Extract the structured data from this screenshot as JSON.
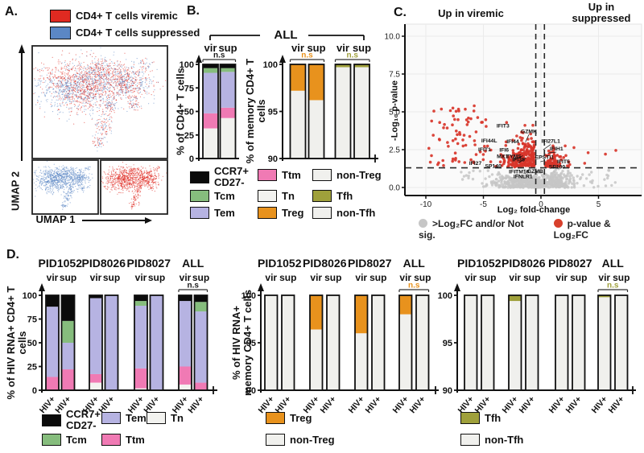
{
  "panels": {
    "A": {
      "label": "A."
    },
    "B": {
      "label": "B."
    },
    "C": {
      "label": "C."
    },
    "D": {
      "label": "D."
    }
  },
  "panelA": {
    "legend": [
      {
        "label": "CD4+ T cells viremic",
        "color": "#e02a21"
      },
      {
        "label": "CD4+ T cells suppressed",
        "color": "#5b87c5"
      }
    ],
    "xlabel": "UMAP 1",
    "ylabel": "UMAP 2"
  },
  "panelB": {
    "bracket_label": "ALL"
  },
  "palette": {
    "CCR7+ CD27-": "#0b0b0b",
    "Tcm": "#86bd7d",
    "Tem": "#b6b3e2",
    "Ttm": "#f07ab4",
    "Tn": "#f2f2ef",
    "Treg": "#e8921d",
    "non-Treg": "#f0f0ed",
    "Tfh": "#9fa03b",
    "non-Tfh": "#f0f0ed"
  },
  "legend_labels": {
    "CCR7+ CD27-": [
      "CCR7+",
      "CD27-"
    ],
    "Tcm": [
      "Tcm"
    ],
    "Tem": [
      "Tem"
    ],
    "Ttm": [
      "Ttm"
    ],
    "Tn": [
      "Tn"
    ],
    "Treg": [
      "Treg"
    ],
    "non-Treg": [
      "non-Treg"
    ],
    "Tfh": [
      "Tfh"
    ],
    "non-Tfh": [
      "non-Tfh"
    ]
  },
  "chart_data": [
    {
      "id": "B1",
      "type": "bar",
      "ylabel": "% of CD4+ T cells",
      "ylim": [
        0,
        100
      ],
      "yticks": [
        0,
        25,
        50,
        75,
        100
      ],
      "stack_order": [
        "Tn",
        "Ttm",
        "Tem",
        "Tcm",
        "CCR7+ CD27-"
      ],
      "groups": [
        {
          "name": "",
          "sig": "n.s",
          "sig_color": "#1a1a1a",
          "bars": [
            {
              "cond": "vir",
              "values": {
                "Tn": 32,
                "Ttm": 16,
                "Tem": 43,
                "Tcm": 5,
                "CCR7+ CD27-": 4
              }
            },
            {
              "cond": "sup",
              "values": {
                "Tn": 43,
                "Ttm": 11,
                "Tem": 38,
                "Tcm": 4,
                "CCR7+ CD27-": 4
              }
            }
          ]
        }
      ]
    },
    {
      "id": "B2",
      "type": "bar",
      "ylabel": "% of memory CD4+ T cells",
      "ylim": [
        90,
        100
      ],
      "yticks": [
        90,
        95,
        100
      ],
      "stack_order": [
        "non-Treg",
        "Treg"
      ],
      "groups": [
        {
          "name": "",
          "sig": "n.s",
          "sig_color": "#e8921d",
          "bars": [
            {
              "cond": "vir",
              "values": {
                "non-Treg": 97.2,
                "Treg": 2.8
              }
            },
            {
              "cond": "sup",
              "values": {
                "non-Treg": 96.2,
                "Treg": 3.8
              }
            }
          ]
        }
      ]
    },
    {
      "id": "B3",
      "type": "bar",
      "ylabel": "",
      "ylim": [
        90,
        100
      ],
      "yticks": [],
      "stack_order": [
        "non-Tfh",
        "Tfh"
      ],
      "groups": [
        {
          "name": "",
          "sig": "n.s",
          "sig_color": "#9fa03b",
          "bars": [
            {
              "cond": "vir",
              "values": {
                "non-Tfh": 99.7,
                "Tfh": 0.3
              }
            },
            {
              "cond": "sup",
              "values": {
                "non-Tfh": 99.7,
                "Tfh": 0.3
              }
            }
          ]
        }
      ]
    },
    {
      "id": "C",
      "type": "scatter",
      "title_left": "Up in viremic",
      "title_right": "Up in suppressed",
      "xlabel": "Log₂ fold-change",
      "ylabel": "-Log₁₀ p-value",
      "xticks": [
        -10,
        -5,
        0,
        5
      ],
      "xtick_labels": [
        "-10",
        "-5",
        "0",
        "5"
      ],
      "yticks": [
        0,
        2.5,
        5,
        7.5,
        10
      ],
      "ytick_labels": [
        "0.0",
        "2.5",
        "5.0",
        "7.5",
        "10.0"
      ],
      "xlim": [
        -11.8,
        8.7
      ],
      "ylim": [
        -0.5,
        10.8
      ],
      "thresholds": {
        "p_line": 1.3,
        "fc_lines": [
          -0.45,
          0.3
        ]
      },
      "point_colors": {
        "nonsig": "#c6c6c6",
        "sig": "#d8352a"
      },
      "legend": [
        {
          "label": ">Log₂FC and/or Not sig.",
          "color": "#c6c6c6"
        },
        {
          "label": "p-value & Log₂FC",
          "color": "#d8402c"
        }
      ],
      "genes": [
        {
          "name": "IFIT3",
          "x": -3.3,
          "y": 3.95
        },
        {
          "name": "GZMK",
          "x": -1.05,
          "y": 3.6,
          "px": -1.35,
          "py": 3.0
        },
        {
          "name": "IFI44L",
          "x": -4.5,
          "y": 2.98
        },
        {
          "name": "IFI44",
          "x": -2.45,
          "y": 2.92
        },
        {
          "name": "IFIT1",
          "x": -4.9,
          "y": 2.4
        },
        {
          "name": "IFI6",
          "x": -3.2,
          "y": 2.38
        },
        {
          "name": "IFI27L1",
          "x": 0.85,
          "y": 2.95,
          "px": 0.2,
          "py": 2.5
        },
        {
          "name": "IFIH1",
          "x": 1.35,
          "y": 2.45,
          "px": 0.6,
          "py": 2.28
        },
        {
          "name": "MX1",
          "x": -3.35,
          "y": 1.93
        },
        {
          "name": "TYMS",
          "x": -2.35,
          "y": 1.95,
          "px": -1.55,
          "py": 2.1
        },
        {
          "name": "IFI35",
          "x": -1.95,
          "y": 1.72,
          "px": -1.3,
          "py": 1.95
        },
        {
          "name": "EPSTI1",
          "x": 0.3,
          "y": 1.88,
          "px": -0.05,
          "py": 1.7
        },
        {
          "name": "IFIT5",
          "x": 1.95,
          "y": 1.6
        },
        {
          "name": "IFI27",
          "x": -5.7,
          "y": 1.5
        },
        {
          "name": "SP140",
          "x": -4.15,
          "y": 1.3
        },
        {
          "name": "SP100",
          "x": 1.4,
          "y": 1.25
        },
        {
          "name": "GZMB",
          "x": -0.5,
          "y": 0.95
        },
        {
          "name": "IFITM10",
          "x": -1.9,
          "y": 0.93
        },
        {
          "name": "IFNLR1",
          "x": -1.55,
          "y": 0.62
        }
      ]
    },
    {
      "id": "D1",
      "type": "bar",
      "ylabel": "% of HIV RNA+ CD4+ T cells",
      "ylim": [
        0,
        100
      ],
      "yticks": [
        0,
        25,
        50,
        75,
        100
      ],
      "xtick_label": "HIV+",
      "stack_order": [
        "Tn",
        "Ttm",
        "Tem",
        "Tcm",
        "CCR7+ CD27-"
      ],
      "groups": [
        {
          "name": "PID1052",
          "bars": [
            {
              "cond": "vir",
              "values": {
                "Tn": 0,
                "Ttm": 14,
                "Tem": 74,
                "Tcm": 0,
                "CCR7+ CD27-": 12
              }
            },
            {
              "cond": "sup",
              "values": {
                "Tn": 0,
                "Ttm": 22,
                "Tem": 28,
                "Tcm": 23,
                "CCR7+ CD27-": 27
              }
            }
          ]
        },
        {
          "name": "PID8026",
          "bars": [
            {
              "cond": "vir",
              "values": {
                "Tn": 8,
                "Ttm": 9,
                "Tem": 80,
                "Tcm": 0,
                "CCR7+ CD27-": 3
              }
            },
            {
              "cond": "sup",
              "values": {
                "Tn": 0,
                "Ttm": 0,
                "Tem": 100,
                "Tcm": 0,
                "CCR7+ CD27-": 0
              }
            }
          ]
        },
        {
          "name": "PID8027",
          "bars": [
            {
              "cond": "vir",
              "values": {
                "Tn": 2,
                "Ttm": 21,
                "Tem": 66,
                "Tcm": 5,
                "CCR7+ CD27-": 6
              }
            },
            {
              "cond": "sup",
              "values": {
                "Tn": 0,
                "Ttm": 0,
                "Tem": 100,
                "Tcm": 0,
                "CCR7+ CD27-": 0
              }
            }
          ]
        },
        {
          "name": "ALL",
          "sig": "n.s",
          "sig_color": "#1a1a1a",
          "bars": [
            {
              "cond": "vir",
              "values": {
                "Tn": 6,
                "Ttm": 19,
                "Tem": 69,
                "Tcm": 0,
                "CCR7+ CD27-": 6
              }
            },
            {
              "cond": "sup",
              "values": {
                "Tn": 0,
                "Ttm": 8,
                "Tem": 75,
                "Tcm": 10,
                "CCR7+ CD27-": 7
              }
            }
          ]
        }
      ]
    },
    {
      "id": "D2",
      "type": "bar",
      "ylabel": "% of HIV RNA+ memory CD4+ T cells",
      "ylim": [
        90,
        100
      ],
      "yticks": [
        90,
        95,
        100
      ],
      "xtick_label": "HIV+",
      "stack_order": [
        "non-Treg",
        "Treg"
      ],
      "groups": [
        {
          "name": "PID1052",
          "bars": [
            {
              "cond": "vir",
              "values": {
                "non-Treg": 100,
                "Treg": 0
              }
            },
            {
              "cond": "sup",
              "values": {
                "non-Treg": 100,
                "Treg": 0
              }
            }
          ]
        },
        {
          "name": "PID8026",
          "bars": [
            {
              "cond": "vir",
              "values": {
                "non-Treg": 96.4,
                "Treg": 3.6
              }
            },
            {
              "cond": "sup",
              "values": {
                "non-Treg": 100,
                "Treg": 0
              }
            }
          ]
        },
        {
          "name": "PID8027",
          "bars": [
            {
              "cond": "vir",
              "values": {
                "non-Treg": 96.0,
                "Treg": 4.0
              }
            },
            {
              "cond": "sup",
              "values": {
                "non-Treg": 100,
                "Treg": 0
              }
            }
          ]
        },
        {
          "name": "ALL",
          "sig": "n.s",
          "sig_color": "#e8921d",
          "bars": [
            {
              "cond": "vir",
              "values": {
                "non-Treg": 98.0,
                "Treg": 2.0
              }
            },
            {
              "cond": "sup",
              "values": {
                "non-Treg": 100,
                "Treg": 0
              }
            }
          ]
        }
      ]
    },
    {
      "id": "D3",
      "type": "bar",
      "ylabel": "",
      "ylim": [
        90,
        100
      ],
      "yticks": [
        90,
        95,
        100
      ],
      "xtick_label": "HIV+",
      "stack_order": [
        "non-Tfh",
        "Tfh"
      ],
      "groups": [
        {
          "name": "PID1052",
          "bars": [
            {
              "cond": "vir",
              "values": {
                "non-Tfh": 100,
                "Tfh": 0
              }
            },
            {
              "cond": "sup",
              "values": {
                "non-Tfh": 100,
                "Tfh": 0
              }
            }
          ]
        },
        {
          "name": "PID8026",
          "bars": [
            {
              "cond": "vir",
              "values": {
                "non-Tfh": 99.4,
                "Tfh": 0.6
              }
            },
            {
              "cond": "sup",
              "values": {
                "non-Tfh": 100,
                "Tfh": 0
              }
            }
          ]
        },
        {
          "name": "PID8027",
          "bars": [
            {
              "cond": "vir",
              "values": {
                "non-Tfh": 100,
                "Tfh": 0
              }
            },
            {
              "cond": "sup",
              "values": {
                "non-Tfh": 100,
                "Tfh": 0
              }
            }
          ]
        },
        {
          "name": "ALL",
          "sig": "n.s",
          "sig_color": "#9fa03b",
          "bars": [
            {
              "cond": "vir",
              "values": {
                "non-Tfh": 99.8,
                "Tfh": 0.2
              }
            },
            {
              "cond": "sup",
              "values": {
                "non-Tfh": 100,
                "Tfh": 0
              }
            }
          ]
        }
      ]
    }
  ]
}
